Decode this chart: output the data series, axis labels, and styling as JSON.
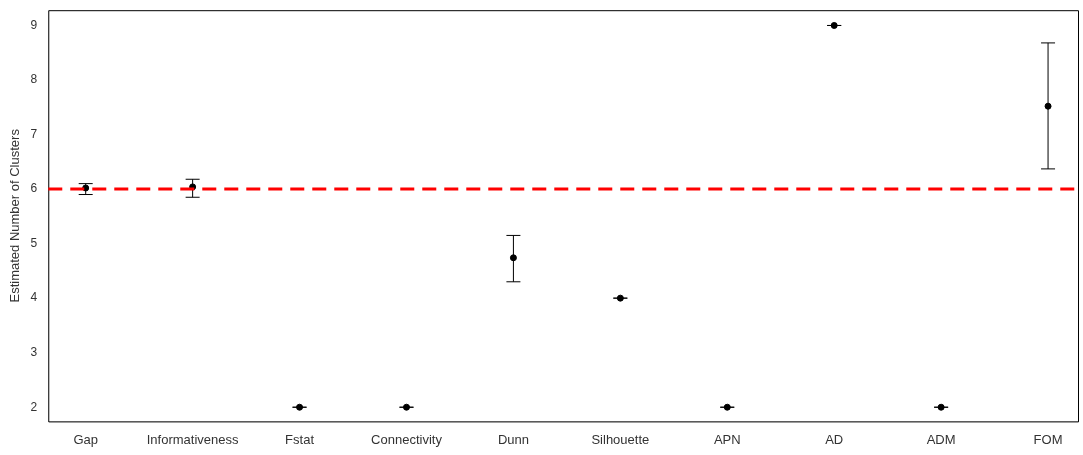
{
  "chart_data": {
    "type": "scatter",
    "ylabel": "Estimated Number of Clusters",
    "categories": [
      "Gap",
      "Informativeness",
      "Fstat",
      "Connectivity",
      "Dunn",
      "Silhouette",
      "APN",
      "AD",
      "ADM",
      "FOM"
    ],
    "values": [
      6.02,
      6.04,
      2,
      2,
      4.74,
      4,
      2,
      9,
      2,
      7.52
    ],
    "errors": [
      [
        5.9,
        6.1
      ],
      [
        5.85,
        6.18
      ],
      0,
      0,
      [
        4.3,
        5.15
      ],
      0,
      0,
      0,
      0,
      [
        6.37,
        8.68
      ]
    ],
    "color": "#000000",
    "marker": "circle",
    "ylim": [
      1.74,
      9.28
    ],
    "yticks": [
      2,
      3,
      4,
      5,
      6,
      7,
      8,
      9
    ],
    "grid": false,
    "legend": false,
    "ref_lines": [
      {
        "axis": "y",
        "value": 6,
        "color": "#ff0000",
        "line_style": "dashed"
      }
    ]
  }
}
